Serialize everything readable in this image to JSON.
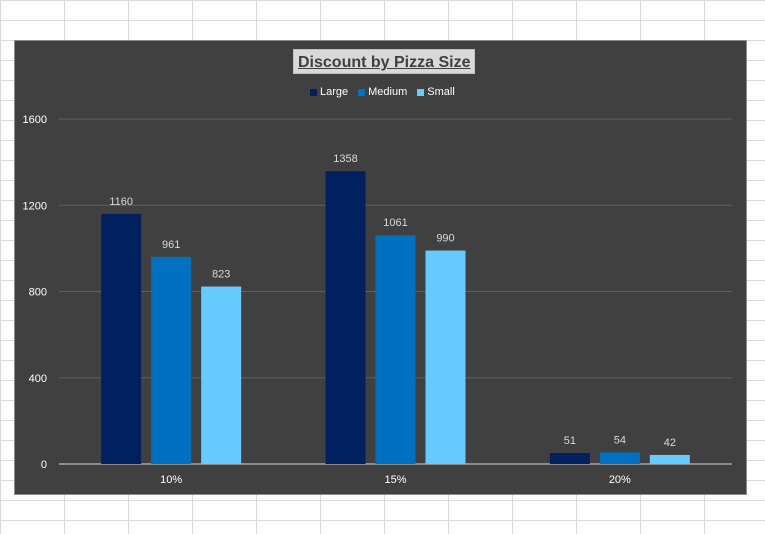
{
  "chart_data": {
    "type": "bar",
    "title": "Discount by Pizza Size",
    "categories": [
      "10%",
      "15%",
      "20%"
    ],
    "series": [
      {
        "name": "Large",
        "values": [
          1160,
          1358,
          51
        ],
        "color": "#002060"
      },
      {
        "name": "Medium",
        "values": [
          961,
          1061,
          54
        ],
        "color": "#0070c0"
      },
      {
        "name": "Small",
        "values": [
          823,
          990,
          42
        ],
        "color": "#66ccff"
      }
    ],
    "ylim": [
      0,
      1600
    ],
    "yticks": [
      "0",
      "400",
      "800",
      "1200",
      "1600"
    ],
    "grid": true,
    "legend_position": "top",
    "data_labels": true
  }
}
